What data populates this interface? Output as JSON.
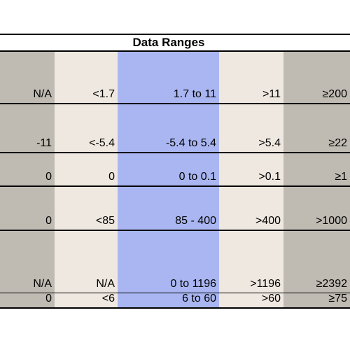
{
  "table": {
    "title": "Data Ranges",
    "rows": [
      [
        "N/A",
        "<1.7",
        "1.7 to 11",
        ">11",
        "≥200"
      ],
      [
        "-11",
        "<-5.4",
        "-5.4 to 5.4",
        ">5.4",
        "≥22"
      ],
      [
        "0",
        "0",
        "0 to 0.1",
        ">0.1",
        "≥1"
      ],
      [
        "0",
        "<85",
        "85 - 400",
        ">400",
        ">1000"
      ],
      [
        "N/A",
        "N/A",
        "0 to 1196",
        ">1196",
        "≥2392"
      ],
      [
        "0",
        "<6",
        "6  to 60",
        ">60",
        "≥75"
      ]
    ]
  },
  "colors": {
    "gray_column": "#bfbbb3",
    "beige_column": "#efe8e0",
    "blue_column": "#a9b6f1"
  }
}
